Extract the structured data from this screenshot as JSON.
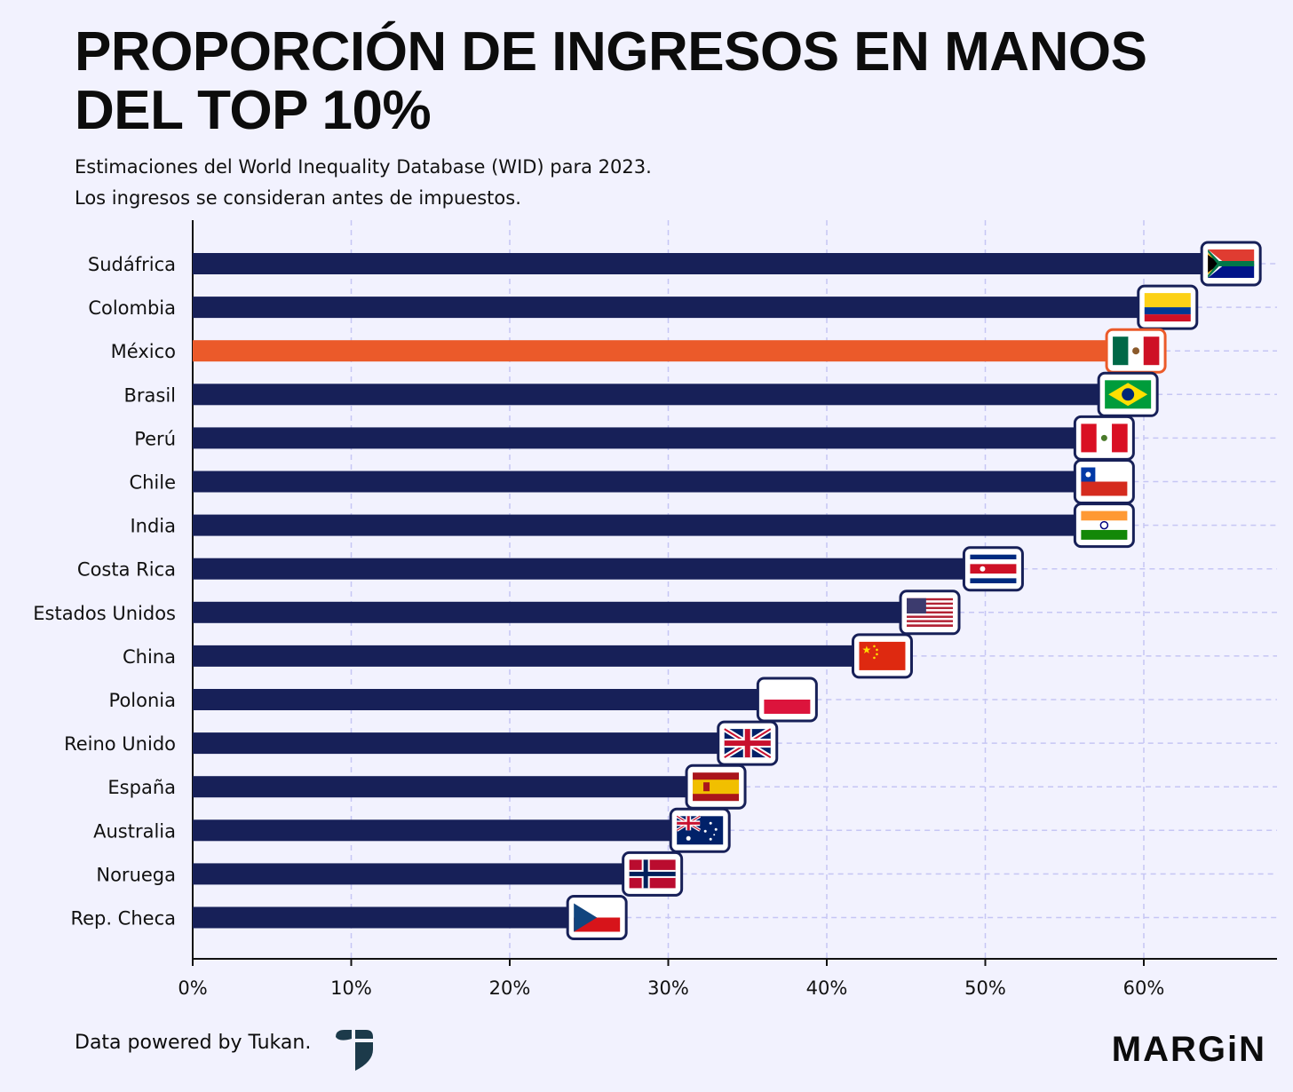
{
  "header": {
    "title": "PROPORCIÓN DE INGRESOS EN MANOS DEL TOP 10%",
    "subtitle_line1": "Estimaciones del World Inequality Database (WID) para 2023.",
    "subtitle_line2": "Los ingresos se consideran antes de impuestos."
  },
  "footer": {
    "credit": "Data powered by Tukan.",
    "brand": "MARGiN"
  },
  "colors": {
    "bar": "#172058",
    "highlight": "#eb5a2a",
    "grid": "#c6c6f4",
    "background": "#f2f2fe"
  },
  "chart_data": {
    "type": "bar",
    "orientation": "horizontal",
    "categories": [
      "Sudáfrica",
      "Colombia",
      "México",
      "Brasil",
      "Perú",
      "Chile",
      "India",
      "Costa Rica",
      "Estados Unidos",
      "China",
      "Polonia",
      "Reino Unido",
      "España",
      "Australia",
      "Noruega",
      "Rep. Checa"
    ],
    "values": [
      65.5,
      61.5,
      59.5,
      59.0,
      57.5,
      57.5,
      57.5,
      50.5,
      46.5,
      43.5,
      37.5,
      35.0,
      33.0,
      32.0,
      29.0,
      25.5
    ],
    "highlight": "México",
    "flags": [
      "south-africa-flag",
      "colombia-flag",
      "mexico-flag",
      "brazil-flag",
      "peru-flag",
      "chile-flag",
      "india-flag",
      "costa-rica-flag",
      "usa-flag",
      "china-flag",
      "poland-flag",
      "uk-flag",
      "spain-flag",
      "australia-flag",
      "norway-flag",
      "czech-flag"
    ],
    "xlim": [
      0,
      68
    ],
    "xticks": [
      0,
      10,
      20,
      30,
      40,
      50,
      60
    ],
    "xtick_labels": [
      "0%",
      "10%",
      "20%",
      "30%",
      "40%",
      "50%",
      "60%"
    ],
    "grid": true
  }
}
